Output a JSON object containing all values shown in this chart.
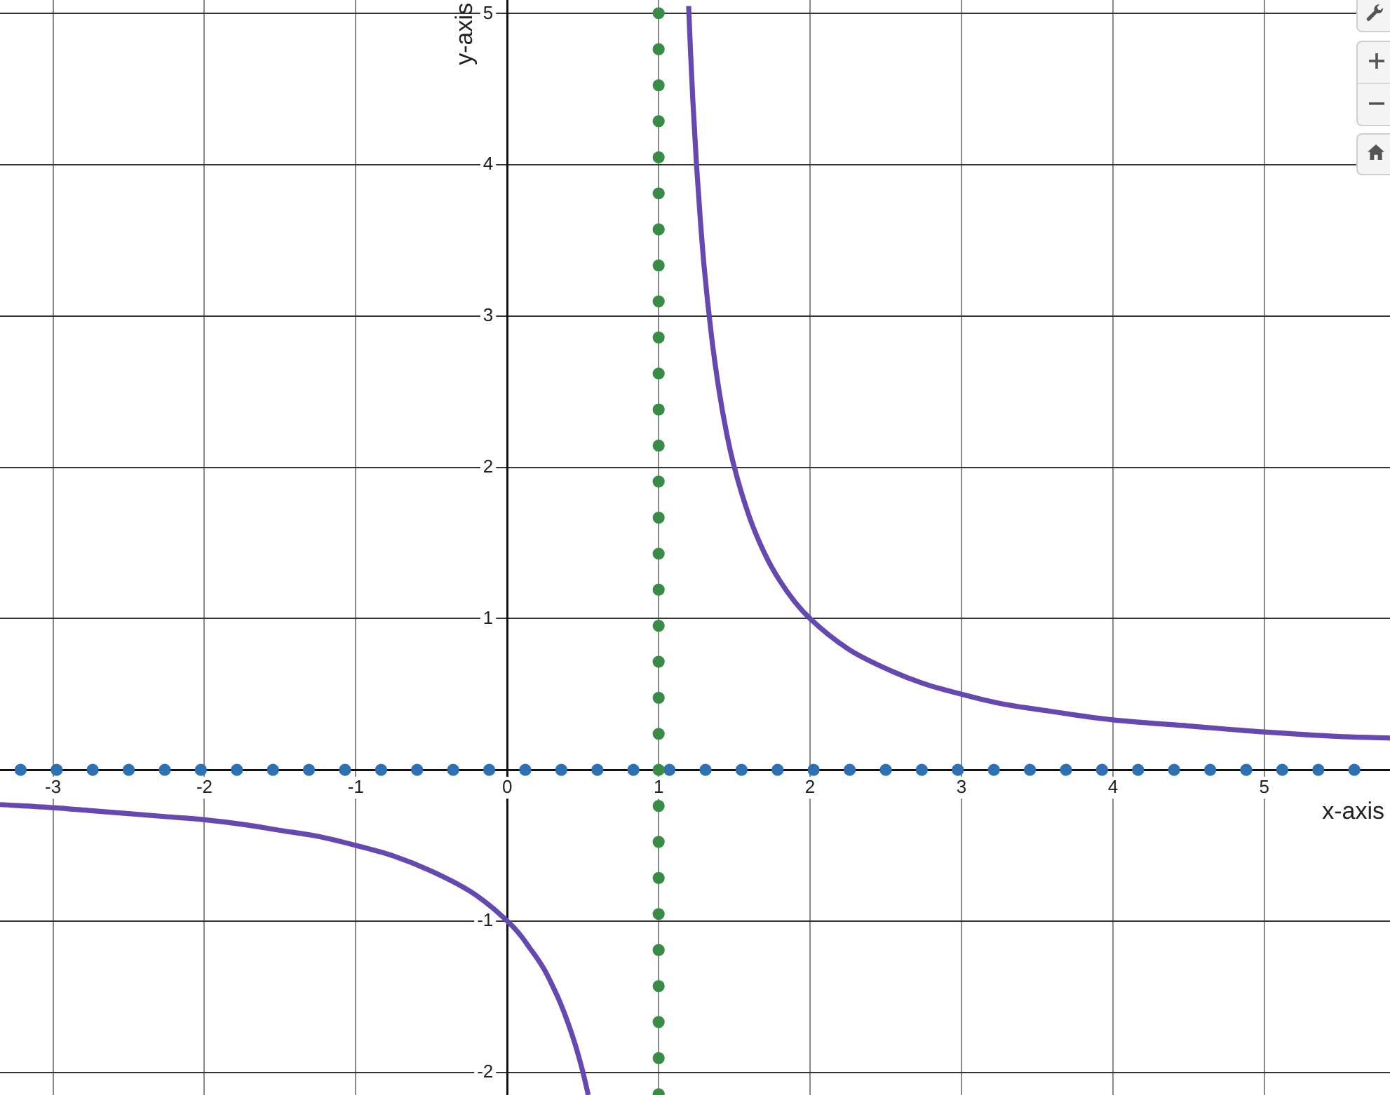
{
  "chart_data": {
    "type": "line",
    "xlabel": "x-axis",
    "ylabel": "y-axis",
    "xlim": [
      -3.35,
      5.83
    ],
    "ylim": [
      -2.15,
      5.09
    ],
    "xticks": [
      -3,
      -2,
      -1,
      0,
      1,
      2,
      3,
      4,
      5
    ],
    "yticks": [
      -2,
      -1,
      {
        "value": 0,
        "label": null
      },
      1,
      2,
      3,
      4,
      5
    ],
    "grid": true,
    "marker": "none",
    "line_style": "solid",
    "series": [
      {
        "color": "#6548b0",
        "x": [
          -3.35,
          -3,
          -2.75,
          -2.5,
          -2.25,
          -2,
          -1.75,
          -1.5,
          -1.25,
          -1,
          -0.75,
          -0.5,
          -0.25,
          -0.1,
          0,
          0.05,
          0.1,
          0.15,
          0.2,
          0.25,
          0.3,
          0.35,
          0.4,
          0.45,
          0.5,
          0.535,
          1,
          1.198,
          1.21,
          1.225,
          1.25,
          1.275,
          1.3,
          1.35,
          1.4,
          1.45,
          1.5,
          1.6,
          1.7,
          1.8,
          1.9,
          2,
          2.25,
          2.5,
          2.75,
          3,
          3.25,
          3.5,
          4,
          4.5,
          5,
          5.5,
          5.83
        ],
        "values": [
          -0.23,
          -0.25,
          -0.27,
          -0.29,
          -0.31,
          -0.33,
          -0.36,
          -0.4,
          -0.44,
          -0.5,
          -0.57,
          -0.67,
          -0.8,
          -0.91,
          -1,
          -1.05,
          -1.11,
          -1.18,
          -1.25,
          -1.33,
          -1.43,
          -1.54,
          -1.67,
          -1.82,
          -2,
          -2.15,
          null,
          5.05,
          4.76,
          4.44,
          4,
          3.64,
          3.33,
          2.86,
          2.5,
          2.22,
          2,
          1.67,
          1.43,
          1.25,
          1.11,
          1,
          0.8,
          0.67,
          0.57,
          0.5,
          0.44,
          0.4,
          0.33,
          0.29,
          0.25,
          0.22,
          0.21
        ]
      }
    ],
    "ref_lines": [
      {
        "axis": "y",
        "value": 0,
        "color": "#2d70b3",
        "line_style": "dotted"
      },
      {
        "axis": "x",
        "value": 1,
        "color": "#388c46",
        "line_style": "dotted"
      }
    ]
  }
}
